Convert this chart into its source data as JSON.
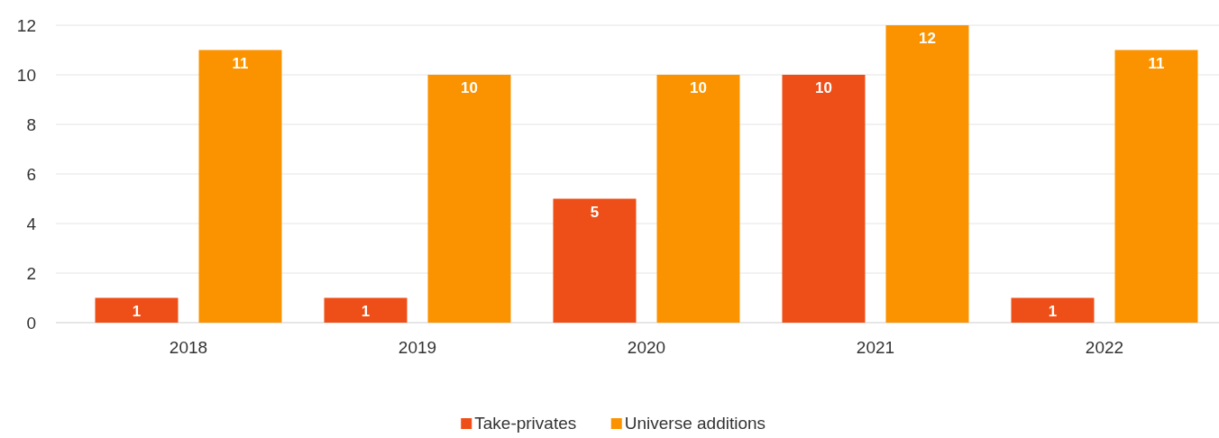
{
  "chart_data": {
    "type": "bar",
    "categories": [
      "2018",
      "2019",
      "2020",
      "2021",
      "2022"
    ],
    "series": [
      {
        "name": "Take-privates",
        "color": "#ee4e17",
        "values": [
          1,
          1,
          5,
          10,
          1
        ]
      },
      {
        "name": "Universe additions",
        "color": "#fb9300",
        "values": [
          11,
          10,
          10,
          12,
          11
        ]
      }
    ],
    "ylim": [
      0,
      12
    ],
    "yticks": [
      0,
      2,
      4,
      6,
      8,
      10,
      12
    ],
    "grid": "y",
    "legend": "bottom",
    "data_labels": true
  }
}
